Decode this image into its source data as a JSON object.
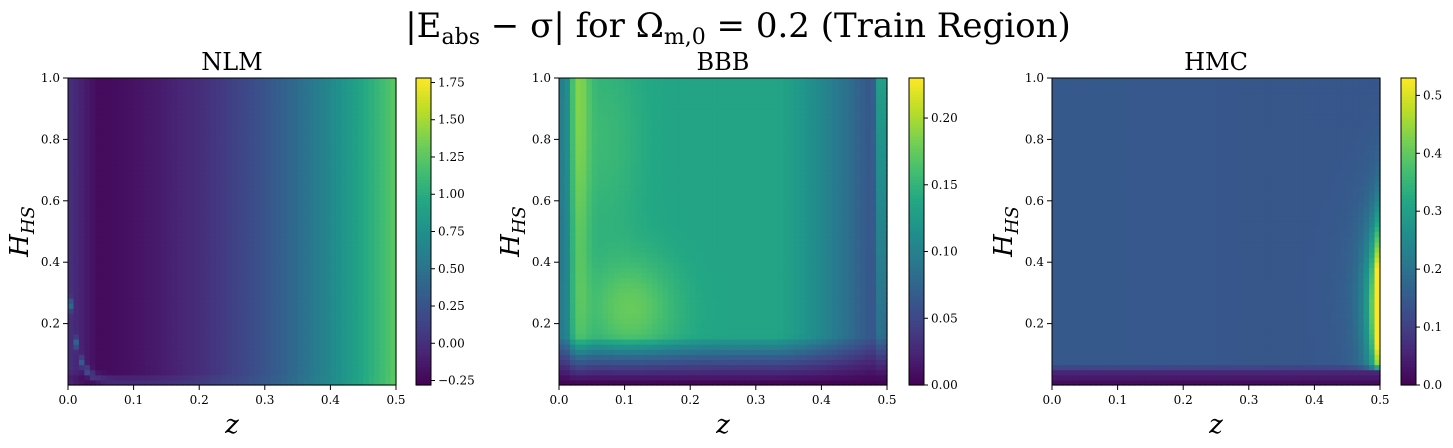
{
  "figure": {
    "suptitle_parts": [
      "|E",
      "abs",
      " − σ| for Ω",
      "m,0",
      " = 0.2 (Train Region)"
    ]
  },
  "chart_data": [
    {
      "type": "heatmap",
      "title": "NLM",
      "xlabel": "z",
      "ylabel_main": "H",
      "ylabel_sub": "HS",
      "xlim": [
        0.0,
        0.5
      ],
      "ylim": [
        0.0,
        1.0
      ],
      "x_ticks": [
        "0.0",
        "0.1",
        "0.2",
        "0.3",
        "0.4",
        "0.5"
      ],
      "y_ticks": [
        "0.2",
        "0.4",
        "0.6",
        "0.8",
        "1.0"
      ],
      "colorbar": {
        "vmin": -0.28,
        "vmax": 1.78,
        "ticks": [
          -0.25,
          0,
          0.25,
          0.5,
          0.75,
          1.0,
          1.25,
          1.5,
          1.75
        ],
        "tick_labels": [
          "−0.25",
          "0.00",
          "0.25",
          "0.50",
          "0.75",
          "1.00",
          "1.25",
          "1.50",
          "1.75"
        ]
      },
      "grid": false,
      "colormap": "viridis",
      "pattern": "mostly increasing with z; minimum near z=0.05; thin bright band near H=0.05 at low z"
    },
    {
      "type": "heatmap",
      "title": "BBB",
      "xlabel": "z",
      "ylabel_main": "H",
      "ylabel_sub": "HS",
      "xlim": [
        0.0,
        0.5
      ],
      "ylim": [
        0.0,
        1.0
      ],
      "x_ticks": [
        "0.0",
        "0.1",
        "0.2",
        "0.3",
        "0.4",
        "0.5"
      ],
      "y_ticks": [
        "0.2",
        "0.4",
        "0.6",
        "0.8",
        "1.0"
      ],
      "colorbar": {
        "vmin": 0.0,
        "vmax": 0.23,
        "ticks": [
          0.0,
          0.05,
          0.1,
          0.15,
          0.2
        ],
        "tick_labels": [
          "0.00",
          "0.05",
          "0.10",
          "0.15",
          "0.20"
        ]
      },
      "grid": false,
      "colormap": "viridis",
      "pattern": "high near z=0.03 and around z~0.1,H~0.25; low near bottom and right; bright strip at z~0.49"
    },
    {
      "type": "heatmap",
      "title": "HMC",
      "xlabel": "z",
      "ylabel_main": "H",
      "ylabel_sub": "HS",
      "xlim": [
        0.0,
        0.5
      ],
      "ylim": [
        0.0,
        1.0
      ],
      "x_ticks": [
        "0.0",
        "0.1",
        "0.2",
        "0.3",
        "0.4",
        "0.5"
      ],
      "y_ticks": [
        "0.2",
        "0.4",
        "0.6",
        "0.8",
        "1.0"
      ],
      "colorbar": {
        "vmin": 0.0,
        "vmax": 0.53,
        "ticks": [
          0.0,
          0.1,
          0.2,
          0.3,
          0.4,
          0.5
        ],
        "tick_labels": [
          "0.0",
          "0.1",
          "0.2",
          "0.3",
          "0.4",
          "0.5"
        ]
      },
      "grid": false,
      "colormap": "viridis",
      "pattern": "roughly uniform ~0.15; very low in bottom rows; rises sharply at z~0.48-0.5 for H 0.1-0.5"
    }
  ]
}
